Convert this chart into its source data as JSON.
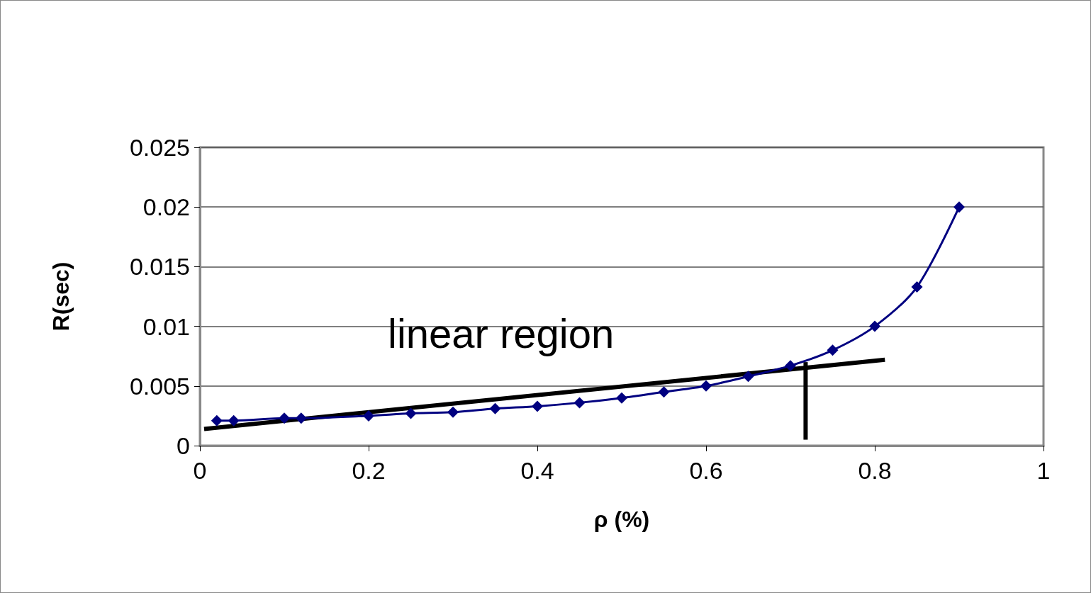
{
  "chart_data": {
    "type": "line",
    "xlabel": "ρ (%)",
    "ylabel": "R(sec)",
    "xlim": [
      0,
      1
    ],
    "xticks": [
      0,
      0.2,
      0.4,
      0.6,
      0.8,
      1
    ],
    "ylim": [
      0,
      0.025
    ],
    "yticks": [
      0,
      0.005,
      0.01,
      0.015,
      0.02,
      0.025
    ],
    "grid": "y",
    "series": [
      {
        "color": "#000080",
        "marker": "diamond",
        "x": [
          0.02,
          0.04,
          0.1,
          0.12,
          0.2,
          0.25,
          0.3,
          0.35,
          0.4,
          0.45,
          0.5,
          0.55,
          0.6,
          0.65,
          0.7,
          0.75,
          0.8,
          0.85,
          0.9
        ],
        "values": [
          0.0021,
          0.0021,
          0.0023,
          0.0023,
          0.0025,
          0.0027,
          0.0028,
          0.0031,
          0.0033,
          0.0036,
          0.004,
          0.0045,
          0.005,
          0.0058,
          0.0067,
          0.008,
          0.01,
          0.0133,
          0.02
        ]
      },
      {
        "color": "#000000",
        "marker": "none",
        "x": [
          0.005,
          0.812
        ],
        "values": [
          0.0014,
          0.0072
        ]
      },
      {
        "color": "#000000",
        "marker": "none",
        "x": [
          0.718,
          0.718
        ],
        "values": [
          0.0005,
          0.007
        ]
      }
    ],
    "annotations": [
      "linear region"
    ]
  }
}
